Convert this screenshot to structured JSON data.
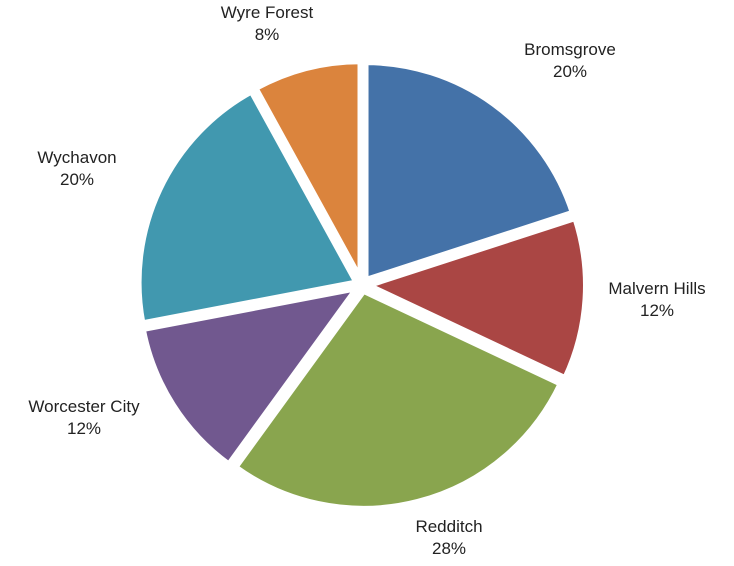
{
  "chart_data": {
    "type": "pie",
    "title": "",
    "start_angle_deg": 0,
    "direction": "clockwise",
    "slices": [
      {
        "label": "Bromsgrove",
        "value": 20,
        "value_label": "20%",
        "color": "#4472a8"
      },
      {
        "label": "Malvern Hills",
        "value": 12,
        "value_label": "12%",
        "color": "#aa4644"
      },
      {
        "label": "Redditch",
        "value": 28,
        "value_label": "28%",
        "color": "#89a54e"
      },
      {
        "label": "Worcester City",
        "value": 12,
        "value_label": "12%",
        "color": "#71588f"
      },
      {
        "label": "Wychavon",
        "value": 20,
        "value_label": "20%",
        "color": "#4198af"
      },
      {
        "label": "Wyre Forest",
        "value": 8,
        "value_label": "8%",
        "color": "#db843d"
      }
    ]
  }
}
